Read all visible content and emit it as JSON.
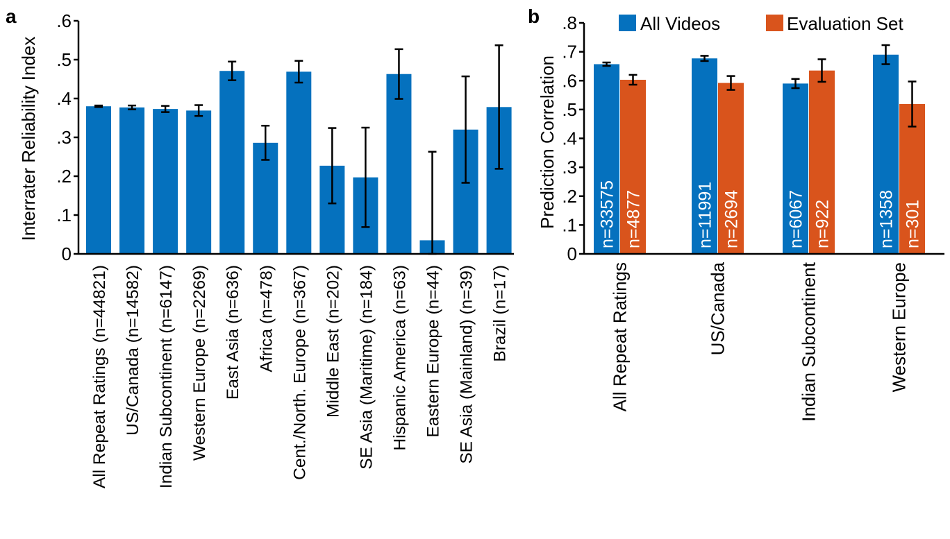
{
  "panels": {
    "a": {
      "letter": "a"
    },
    "b": {
      "letter": "b"
    }
  },
  "colors": {
    "blue": "#0571BE",
    "orange": "#D9541C"
  },
  "chart_data": [
    {
      "type": "bar",
      "panel": "a",
      "ylabel": "Interrater Reliability Index",
      "xlabel": "",
      "ylim": [
        0,
        0.6
      ],
      "yticks": [
        {
          "value": 0,
          "label": "0"
        },
        {
          "value": 0.1,
          "label": ".1"
        },
        {
          "value": 0.2,
          "label": ".2"
        },
        {
          "value": 0.3,
          "label": ".3"
        },
        {
          "value": 0.4,
          "label": ".4"
        },
        {
          "value": 0.5,
          "label": ".5"
        },
        {
          "value": 0.6,
          "label": ".6"
        }
      ],
      "grid": false,
      "categories": [
        "All Repeat Ratings (n=44821)",
        "US/Canada (n=14582)",
        "Indian Subcontinent (n=6147)",
        "Western Europe (n=2269)",
        "East Asia (n=636)",
        "Africa (n=478)",
        "Cent./North. Europe (n=367)",
        "Middle East (n=202)",
        "SE Asia (Maritime) (n=184)",
        "Hispanic America (n=63)",
        "Eastern Europe (n=44)",
        "SE Asia (Mainland) (n=39)",
        "Brazil (n=17)"
      ],
      "values": [
        0.38,
        0.377,
        0.373,
        0.369,
        0.471,
        0.286,
        0.469,
        0.227,
        0.197,
        0.463,
        0.035,
        0.32,
        0.378
      ],
      "errors": [
        0.002,
        0.005,
        0.008,
        0.014,
        0.024,
        0.044,
        0.028,
        0.097,
        0.128,
        0.064,
        0.228,
        0.137,
        0.159
      ]
    },
    {
      "type": "bar",
      "panel": "b",
      "ylabel": "Prediction Correlation",
      "xlabel": "",
      "ylim": [
        0,
        0.8
      ],
      "yticks": [
        {
          "value": 0,
          "label": "0"
        },
        {
          "value": 0.1,
          "label": ".1"
        },
        {
          "value": 0.2,
          "label": ".2"
        },
        {
          "value": 0.3,
          "label": ".3"
        },
        {
          "value": 0.4,
          "label": ".4"
        },
        {
          "value": 0.5,
          "label": ".5"
        },
        {
          "value": 0.6,
          "label": ".6"
        },
        {
          "value": 0.7,
          "label": ".7"
        },
        {
          "value": 0.8,
          "label": ".8"
        }
      ],
      "grid": false,
      "legend_position": "top",
      "categories": [
        "All Repeat Ratings",
        "US/Canada",
        "Indian Subcontinent",
        "Western Europe"
      ],
      "series": [
        {
          "name": "All Videos",
          "color": "#0571BE",
          "values": [
            0.657,
            0.677,
            0.59,
            0.69
          ],
          "errors": [
            0.006,
            0.009,
            0.016,
            0.033
          ],
          "bar_labels": [
            "n=33575",
            "n=11991",
            "n=6067",
            "n=1358"
          ]
        },
        {
          "name": "Evaluation Set",
          "color": "#D9541C",
          "values": [
            0.603,
            0.592,
            0.635,
            0.519
          ],
          "errors": [
            0.017,
            0.024,
            0.039,
            0.078
          ],
          "bar_labels": [
            "n=4877",
            "n=2694",
            "n=922",
            "n=301"
          ]
        }
      ]
    }
  ]
}
